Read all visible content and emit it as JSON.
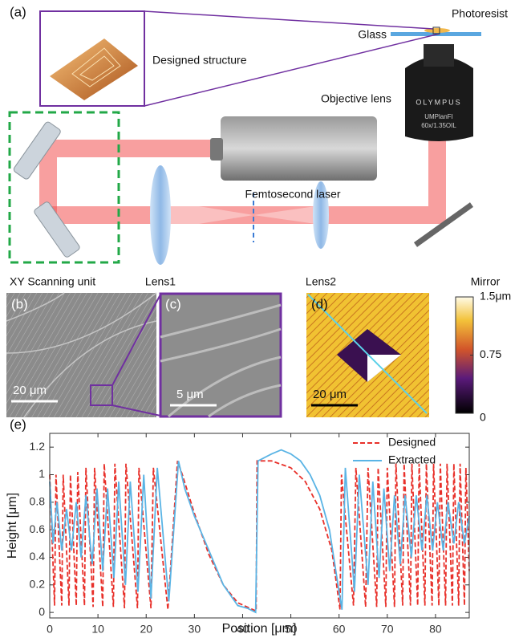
{
  "figure": {
    "panel_labels": [
      "(a)",
      "(b)",
      "(c)",
      "(d)",
      "(e)"
    ],
    "schematic": {
      "photoresist": "Photoresist",
      "glass": "Glass",
      "designed_structure": "Designed structure",
      "objective_lens": "Objective lens",
      "lens_brand": "OLYMPUS",
      "lens_model": "UMPlanFI",
      "lens_spec": "60x/1.35OIL",
      "femtosecond_laser": "Femtosecond laser",
      "xy_scanning_unit": "XY Scanning unit",
      "lens1": "Lens1",
      "lens2": "Lens2",
      "mirror": "Mirror"
    },
    "scale_bars": {
      "b": "20 μm",
      "c": "5 μm",
      "d": "20 μm"
    },
    "colorbar": {
      "lim": [
        0,
        1.5
      ],
      "ticks": [
        {
          "value": 1.5,
          "label": "1.5μm"
        },
        0.75,
        0
      ]
    }
  },
  "chart_data": {
    "type": "line",
    "xlabel": "Position [μm]",
    "ylabel": "Height [μm]",
    "xlim": [
      0,
      87
    ],
    "ylim": [
      -0.04,
      1.3
    ],
    "xticks": [
      0,
      10,
      20,
      30,
      40,
      50,
      60,
      70,
      80
    ],
    "yticks": [
      0,
      0.2,
      0.4,
      0.6,
      0.8,
      1,
      1.2
    ],
    "legend": "upper right",
    "series": [
      {
        "name": "Designed",
        "color": "#e8302a",
        "line_style": "dashed",
        "x": [
          0,
          1,
          1.3,
          2.5,
          2.8,
          4,
          4.3,
          5.5,
          5.8,
          7.2,
          7.5,
          9,
          9.3,
          11,
          11.3,
          13.2,
          13.5,
          15.5,
          15.8,
          18.2,
          18.5,
          21,
          21.5,
          24.5,
          26.5,
          27.5,
          30,
          33,
          36,
          39,
          42.8,
          43,
          46,
          50,
          53,
          56,
          58.5,
          60.2,
          60.5,
          63,
          63.5,
          65.5,
          66,
          67.8,
          68.1,
          69.7,
          70,
          71.5,
          71.8,
          73.2,
          73.5,
          74.8,
          75.1,
          76.3,
          76.6,
          77.8,
          78.1,
          79.3,
          79.6,
          80.7,
          81,
          82.1,
          82.4,
          83.5,
          83.8,
          84.8,
          85.1,
          86,
          86.3,
          87
        ],
        "values": [
          1.0,
          0.05,
          1.0,
          0.05,
          1.0,
          0.05,
          1.0,
          0.05,
          1.02,
          0.05,
          1.05,
          0.04,
          1.05,
          0.04,
          1.08,
          0.04,
          1.08,
          0.03,
          1.08,
          0.03,
          1.05,
          0.03,
          1.05,
          0.02,
          1.1,
          1.0,
          0.72,
          0.42,
          0.2,
          0.07,
          0.01,
          1.1,
          1.1,
          1.05,
          0.95,
          0.75,
          0.45,
          0.02,
          1.0,
          0.05,
          1.05,
          0.04,
          1.05,
          0.04,
          1.05,
          0.04,
          1.05,
          0.04,
          1.08,
          0.05,
          1.08,
          0.05,
          1.08,
          0.05,
          1.08,
          0.05,
          1.08,
          0.05,
          1.08,
          0.05,
          1.08,
          0.05,
          1.08,
          0.05,
          1.08,
          0.05,
          1.08,
          0.05,
          1.05,
          0.3
        ]
      },
      {
        "name": "Extracted",
        "color": "#5ab4e5",
        "line_style": "solid",
        "x": [
          0,
          0.7,
          1.5,
          2.5,
          3.5,
          4.5,
          5.5,
          6.5,
          7.5,
          8.8,
          9.8,
          11,
          12,
          13.3,
          14.3,
          15.7,
          16.7,
          18.3,
          19.5,
          21,
          22.3,
          24.7,
          26.7,
          28,
          30,
          33,
          36,
          39,
          41,
          42.7,
          43.2,
          46,
          48,
          50,
          52,
          54,
          56,
          58,
          60,
          60.6,
          61.3,
          63.2,
          64.2,
          66,
          67,
          68.3,
          69.3,
          70.5,
          71.5,
          72.7,
          73.7,
          75,
          76,
          77.2,
          78.2,
          79.4,
          80.4,
          81.6,
          82.6,
          83.8,
          84.8,
          86,
          87
        ],
        "values": [
          0.95,
          0.5,
          0.8,
          0.45,
          0.75,
          0.45,
          0.8,
          0.4,
          0.85,
          0.35,
          0.9,
          0.3,
          0.9,
          0.25,
          0.95,
          0.2,
          0.95,
          0.15,
          1.0,
          0.1,
          1.05,
          0.08,
          1.1,
          0.9,
          0.7,
          0.45,
          0.2,
          0.05,
          0.03,
          0.0,
          1.1,
          1.15,
          1.18,
          1.15,
          1.1,
          1.0,
          0.85,
          0.6,
          0.15,
          0.02,
          1.05,
          0.15,
          1.0,
          0.2,
          0.95,
          0.25,
          0.9,
          0.3,
          0.85,
          0.35,
          0.85,
          0.4,
          0.85,
          0.45,
          0.85,
          0.45,
          0.8,
          0.45,
          0.8,
          0.5,
          0.8,
          0.5,
          0.7
        ]
      }
    ]
  }
}
